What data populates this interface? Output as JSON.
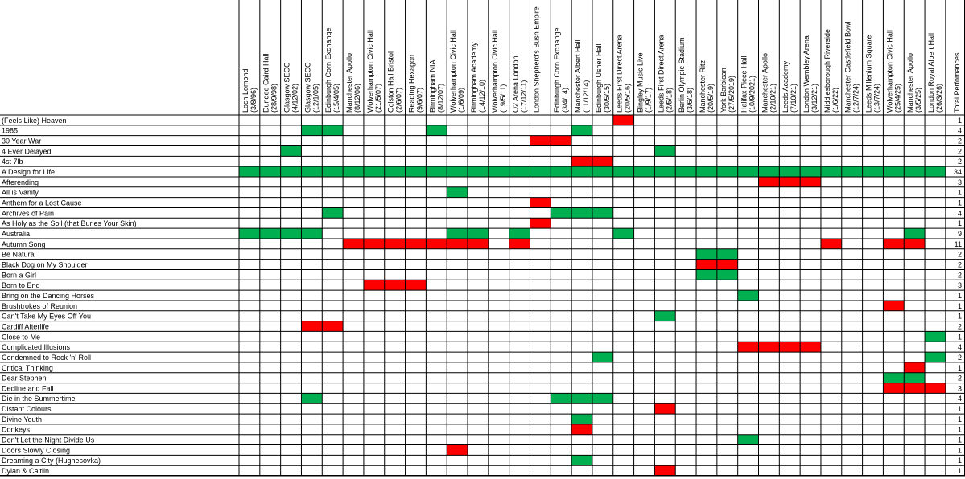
{
  "colors": {
    "green": "#00b050",
    "red": "#ff0000",
    "grid": "#000000",
    "background": "#ffffff"
  },
  "chart_data": {
    "type": "table",
    "total_header": "Total Perfomances",
    "venues": [
      {
        "name": "Loch Lomond",
        "date": "(3/8/96)"
      },
      {
        "name": "Dundee Caird Hall",
        "date": "(28/9/98)"
      },
      {
        "name": "Glasgow SECC",
        "date": "(4/12/02)"
      },
      {
        "name": "Glasgow SECC",
        "date": "(12/1/05)"
      },
      {
        "name": "Edinburgh Corn Exchange",
        "date": "(15/4/05)"
      },
      {
        "name": "Manchester Apollo",
        "date": "(8/12/06)"
      },
      {
        "name": "Wolverhampton Civic Hall",
        "date": "(21/5/07)"
      },
      {
        "name": "Colston Hall Bristol",
        "date": "(2/6/07)"
      },
      {
        "name": "Reading Hexagon",
        "date": "(9/6/07)"
      },
      {
        "name": "Birmingham NIA",
        "date": "(8/12/07)"
      },
      {
        "name": "Wolverhampton Civic Hall",
        "date": "(1/6/09)"
      },
      {
        "name": "Birmingham Academy",
        "date": "(14/12/10)"
      },
      {
        "name": "Wolverhampton Civic Hall",
        "date": "(19/5/11)"
      },
      {
        "name": "O2 Arena London",
        "date": "(17/12/11)"
      },
      {
        "name": "London Shepherd's Bush Empire",
        "date": ""
      },
      {
        "name": "Edinburgh Corn Exchange",
        "date": "(3/4/14)"
      },
      {
        "name": "Manchester Albert Hall",
        "date": "(11/12/14)"
      },
      {
        "name": "Edinburgh Usher Hall",
        "date": "(30/5/15)"
      },
      {
        "name": "Leeds First Direct Arena",
        "date": "(20/5/16)"
      },
      {
        "name": "Bingley Music Live",
        "date": "(1/9/17)"
      },
      {
        "name": "Leeds First Direct Arena",
        "date": "(2/5/18)"
      },
      {
        "name": "Berlin Olympic Stadium",
        "date": "(3/6/18)"
      },
      {
        "name": "Manchester Ritz",
        "date": "(20/5/19)"
      },
      {
        "name": "York Barbican",
        "date": "(27/5/2019)"
      },
      {
        "name": "Halifax Piece Hall",
        "date": "(10/9/2021)"
      },
      {
        "name": "Manchester Apollo",
        "date": "(2/10/21)"
      },
      {
        "name": "Leeds Academy",
        "date": "(7/10/21)"
      },
      {
        "name": "London Wembley Arena",
        "date": "(3/12/21)"
      },
      {
        "name": "Middlesborough Riverside",
        "date": "(1/6/22)"
      },
      {
        "name": "Manchester Castlefield Bowl",
        "date": "(12/7/24)"
      },
      {
        "name": "Leeds Millenium Square",
        "date": "(13/7/24)"
      },
      {
        "name": "Wolverhampton Civic Hall",
        "date": "(25/4/25)"
      },
      {
        "name": "Manchester Apollo",
        "date": "(3/5/25)"
      },
      {
        "name": "London Royal Albert Hall",
        "date": "(26/3/26)"
      }
    ],
    "songs": [
      {
        "name": "(Feels Like) Heaven",
        "total": 1,
        "cells": {
          "18": "R"
        }
      },
      {
        "name": "1985",
        "total": 4,
        "cells": {
          "3": "G",
          "4": "G",
          "9": "G",
          "16": "G"
        }
      },
      {
        "name": "30 Year War",
        "total": 2,
        "cells": {
          "14": "R",
          "15": "R"
        }
      },
      {
        "name": "4 Ever Delayed",
        "total": 2,
        "cells": {
          "2": "G",
          "20": "G"
        }
      },
      {
        "name": "4st 7lb",
        "total": 2,
        "cells": {
          "16": "R",
          "17": "R"
        }
      },
      {
        "name": "A Design for Life",
        "total": 34,
        "cells": {
          "0": "G",
          "1": "G",
          "2": "G",
          "3": "G",
          "4": "G",
          "5": "G",
          "6": "G",
          "7": "G",
          "8": "G",
          "9": "G",
          "10": "G",
          "11": "G",
          "12": "G",
          "13": "G",
          "14": "G",
          "15": "G",
          "16": "G",
          "17": "G",
          "18": "G",
          "19": "G",
          "20": "G",
          "21": "G",
          "22": "G",
          "23": "G",
          "24": "G",
          "25": "G",
          "26": "G",
          "27": "G",
          "28": "G",
          "29": "G",
          "30": "G",
          "31": "G",
          "32": "G",
          "33": "G"
        }
      },
      {
        "name": "Afterending",
        "total": 3,
        "cells": {
          "25": "R",
          "26": "R",
          "27": "R"
        }
      },
      {
        "name": "All is Vanity",
        "total": 1,
        "cells": {
          "10": "G"
        }
      },
      {
        "name": "Anthem for a Lost Cause",
        "total": 1,
        "cells": {
          "14": "R"
        }
      },
      {
        "name": "Archives of Pain",
        "total": 4,
        "cells": {
          "4": "G",
          "15": "G",
          "16": "G",
          "17": "G"
        }
      },
      {
        "name": "As Holy as the Soil (that Buries Your Skin)",
        "total": 1,
        "cells": {
          "14": "R"
        }
      },
      {
        "name": "Australia",
        "total": 9,
        "cells": {
          "0": "G",
          "1": "G",
          "2": "G",
          "3": "G",
          "10": "G",
          "11": "G",
          "13": "G",
          "18": "G",
          "32": "G"
        }
      },
      {
        "name": "Autumn Song",
        "total": 11,
        "cells": {
          "5": "R",
          "6": "R",
          "7": "R",
          "8": "R",
          "9": "R",
          "10": "R",
          "11": "R",
          "13": "R",
          "28": "R",
          "31": "R",
          "32": "R"
        }
      },
      {
        "name": "Be Natural",
        "total": 2,
        "cells": {
          "22": "G",
          "23": "G"
        }
      },
      {
        "name": "Black Dog on My Shoulder",
        "total": 2,
        "cells": {
          "22": "R",
          "23": "R"
        }
      },
      {
        "name": "Born a Girl",
        "total": 2,
        "cells": {
          "22": "G",
          "23": "G"
        }
      },
      {
        "name": "Born to End",
        "total": 3,
        "cells": {
          "6": "R",
          "7": "R",
          "8": "R"
        }
      },
      {
        "name": "Bring on the Dancing Horses",
        "total": 1,
        "cells": {
          "24": "G"
        }
      },
      {
        "name": "Brushtrokes of Reunion",
        "total": 1,
        "cells": {
          "31": "R"
        }
      },
      {
        "name": "Can't Take My Eyes Off You",
        "total": 1,
        "cells": {
          "20": "G"
        }
      },
      {
        "name": "Cardiff Afterlife",
        "total": 2,
        "cells": {
          "3": "R",
          "4": "R"
        }
      },
      {
        "name": "Close to Me",
        "total": 1,
        "cells": {
          "33": "G"
        }
      },
      {
        "name": "Complicated Illusions",
        "total": 4,
        "cells": {
          "24": "R",
          "25": "R",
          "26": "R",
          "27": "R"
        }
      },
      {
        "name": "Condemned to Rock 'n' Roll",
        "total": 2,
        "cells": {
          "17": "G",
          "33": "G"
        }
      },
      {
        "name": "Critical Thinking",
        "total": 1,
        "cells": {
          "32": "R"
        }
      },
      {
        "name": "Dear Stephen",
        "total": 2,
        "cells": {
          "31": "G",
          "32": "G"
        }
      },
      {
        "name": "Decline and Fall",
        "total": 3,
        "cells": {
          "31": "R",
          "32": "R",
          "33": "R"
        }
      },
      {
        "name": "Die in the Summertime",
        "total": 4,
        "cells": {
          "3": "G",
          "15": "G",
          "16": "G",
          "17": "G"
        }
      },
      {
        "name": "Distant Colours",
        "total": 1,
        "cells": {
          "20": "R"
        }
      },
      {
        "name": "Divine Youth",
        "total": 1,
        "cells": {
          "16": "G"
        }
      },
      {
        "name": "Donkeys",
        "total": 1,
        "cells": {
          "16": "R"
        }
      },
      {
        "name": "Don't Let the Night Divide Us",
        "total": 1,
        "cells": {
          "24": "G"
        }
      },
      {
        "name": "Doors Slowly Closing",
        "total": 1,
        "cells": {
          "10": "R"
        }
      },
      {
        "name": "Dreaming a City (Hughesovka)",
        "total": 1,
        "cells": {
          "16": "G"
        }
      },
      {
        "name": "Dylan & Caitlin",
        "total": 1,
        "cells": {
          "20": "R"
        }
      }
    ]
  }
}
